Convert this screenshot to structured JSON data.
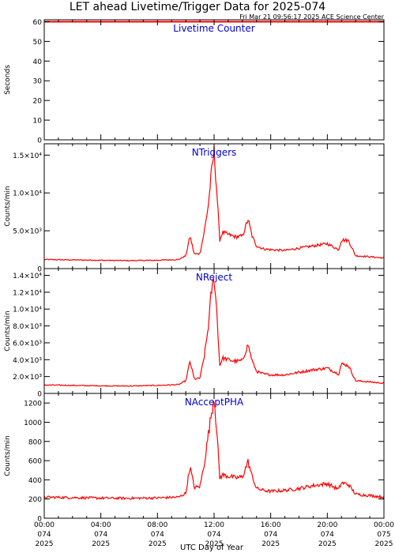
{
  "header": {
    "title": "LET ahead Livetime/Trigger Data for 2025-074",
    "timestamp": "Fri Mar 21 09:56:17 2025 ACE Science Center",
    "xlabel": "UTC Day of Year"
  },
  "x_ticks": [
    {
      "time": "00:00",
      "doy": "074",
      "year": "2025"
    },
    {
      "time": "04:00",
      "doy": "074",
      "year": "2025"
    },
    {
      "time": "08:00",
      "doy": "074",
      "year": "2025"
    },
    {
      "time": "12:00",
      "doy": "074",
      "year": "2025"
    },
    {
      "time": "16:00",
      "doy": "074",
      "year": "2025"
    },
    {
      "time": "20:00",
      "doy": "074",
      "year": "2025"
    },
    {
      "time": "00:00",
      "doy": "075",
      "year": "2025"
    }
  ],
  "colors": {
    "line": "#ff0000",
    "panel_label": "#0000cc",
    "axis": "#000000"
  },
  "chart_data": [
    {
      "type": "line",
      "title": "Livetime Counter",
      "ylabel": "Seconds",
      "ylim": [
        0,
        61
      ],
      "yticks": [
        0,
        10,
        20,
        30,
        40,
        50,
        60
      ],
      "ytick_labels": [
        "0",
        "10",
        "20",
        "30",
        "40",
        "50",
        "60"
      ],
      "xlim_hours": [
        0,
        24
      ],
      "series": [
        {
          "x": [
            0,
            24
          ],
          "values": [
            60,
            60
          ]
        }
      ]
    },
    {
      "type": "line",
      "title": "NTriggers",
      "ylabel": "Counts/min",
      "ylim": [
        0,
        16500
      ],
      "yticks": [
        0,
        5000,
        10000,
        15000
      ],
      "ytick_labels": [
        "0",
        "5.0×10³",
        "1.0×10⁴",
        "1.5×10⁴"
      ],
      "xlim_hours": [
        0,
        24
      ],
      "series": [
        {
          "x": [
            0,
            2,
            4,
            6,
            8,
            9.5,
            10,
            10.3,
            10.6,
            11,
            11.3,
            11.6,
            11.8,
            12,
            12.2,
            12.4,
            12.6,
            13,
            13.5,
            14,
            14.4,
            14.7,
            15,
            15.5,
            16,
            17,
            18,
            19,
            20,
            20.8,
            21,
            21.5,
            22,
            22.8,
            24
          ],
          "values": [
            1200,
            1150,
            1100,
            1050,
            1100,
            1200,
            1700,
            4300,
            1900,
            2000,
            4800,
            8500,
            12500,
            15500,
            10000,
            3800,
            4800,
            4500,
            4200,
            4300,
            6500,
            4200,
            3000,
            2600,
            2500,
            2400,
            2700,
            3000,
            3300,
            2500,
            3800,
            3700,
            1700,
            1600,
            1400
          ]
        }
      ]
    },
    {
      "type": "line",
      "title": "NReject",
      "ylabel": "Counts/min",
      "ylim": [
        0,
        14800
      ],
      "yticks": [
        0,
        2000,
        4000,
        6000,
        8000,
        10000,
        12000,
        14000
      ],
      "ytick_labels": [
        "0",
        "2.0×10³",
        "4.0×10³",
        "6.0×10³",
        "8.0×10³",
        "1.0×10⁴",
        "1.2×10⁴",
        "1.4×10⁴"
      ],
      "xlim_hours": [
        0,
        24
      ],
      "series": [
        {
          "x": [
            0,
            2,
            4,
            6,
            8,
            9.5,
            10,
            10.3,
            10.6,
            11,
            11.3,
            11.6,
            11.8,
            12,
            12.2,
            12.4,
            12.6,
            13,
            13.5,
            14,
            14.4,
            14.7,
            15,
            15.5,
            16,
            17,
            18,
            19,
            20,
            20.8,
            21,
            21.5,
            22,
            22.8,
            24
          ],
          "values": [
            1000,
            950,
            900,
            880,
            950,
            1050,
            1500,
            3800,
            1700,
            1800,
            4300,
            8000,
            12000,
            13800,
            9500,
            3300,
            4200,
            4000,
            3800,
            3900,
            5800,
            3800,
            2600,
            2300,
            2200,
            2200,
            2500,
            2800,
            3000,
            2300,
            3500,
            3300,
            1500,
            1400,
            1200
          ]
        }
      ]
    },
    {
      "type": "line",
      "title": "NAcceptPHA",
      "ylabel": "Counts/min",
      "ylim": [
        0,
        1300
      ],
      "yticks": [
        0,
        200,
        400,
        600,
        800,
        1000,
        1200
      ],
      "ytick_labels": [
        "0",
        "200",
        "400",
        "600",
        "800",
        "1000",
        "1200"
      ],
      "xlim_hours": [
        0,
        24
      ],
      "series": [
        {
          "x": [
            0,
            2,
            4,
            6,
            8,
            9.5,
            10,
            10.3,
            10.6,
            11,
            11.3,
            11.6,
            11.8,
            12,
            12.2,
            12.4,
            12.6,
            13,
            13.5,
            14,
            14.4,
            14.7,
            15,
            15.5,
            16,
            17,
            18,
            19,
            20,
            20.8,
            21,
            21.5,
            22,
            22.8,
            24
          ],
          "values": [
            220,
            215,
            210,
            208,
            212,
            220,
            260,
            540,
            320,
            330,
            560,
            880,
            1080,
            1270,
            900,
            420,
            450,
            440,
            420,
            430,
            590,
            430,
            310,
            290,
            280,
            290,
            310,
            340,
            360,
            300,
            370,
            350,
            250,
            240,
            220
          ]
        }
      ]
    }
  ]
}
